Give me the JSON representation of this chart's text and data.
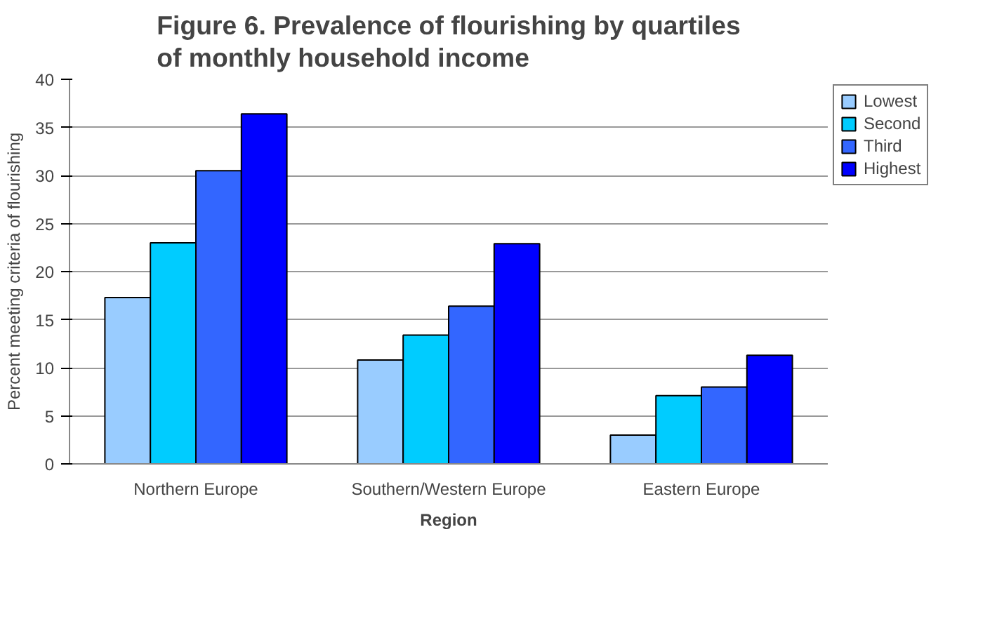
{
  "chart_data": {
    "type": "bar",
    "title": "Figure 6. Prevalence of flourishing by quartiles of monthly household income",
    "xlabel": "Region",
    "ylabel": "Percent meeting criteria of flourishing",
    "categories": [
      "Northern Europe",
      "Southern/Western Europe",
      "Eastern Europe"
    ],
    "series": [
      {
        "name": "Lowest",
        "color": "#99ccff",
        "values": [
          17.3,
          10.8,
          3.0
        ]
      },
      {
        "name": "Second",
        "color": "#00ccff",
        "values": [
          23.0,
          13.4,
          7.1
        ]
      },
      {
        "name": "Third",
        "color": "#3366ff",
        "values": [
          30.5,
          16.4,
          8.0
        ]
      },
      {
        "name": "Highest",
        "color": "#0000ff",
        "values": [
          36.4,
          22.9,
          11.3
        ]
      }
    ],
    "ylim": [
      0,
      40
    ],
    "yticks": [
      0,
      5,
      10,
      15,
      20,
      25,
      30,
      35,
      40
    ],
    "grid": "y",
    "legend": "right"
  }
}
